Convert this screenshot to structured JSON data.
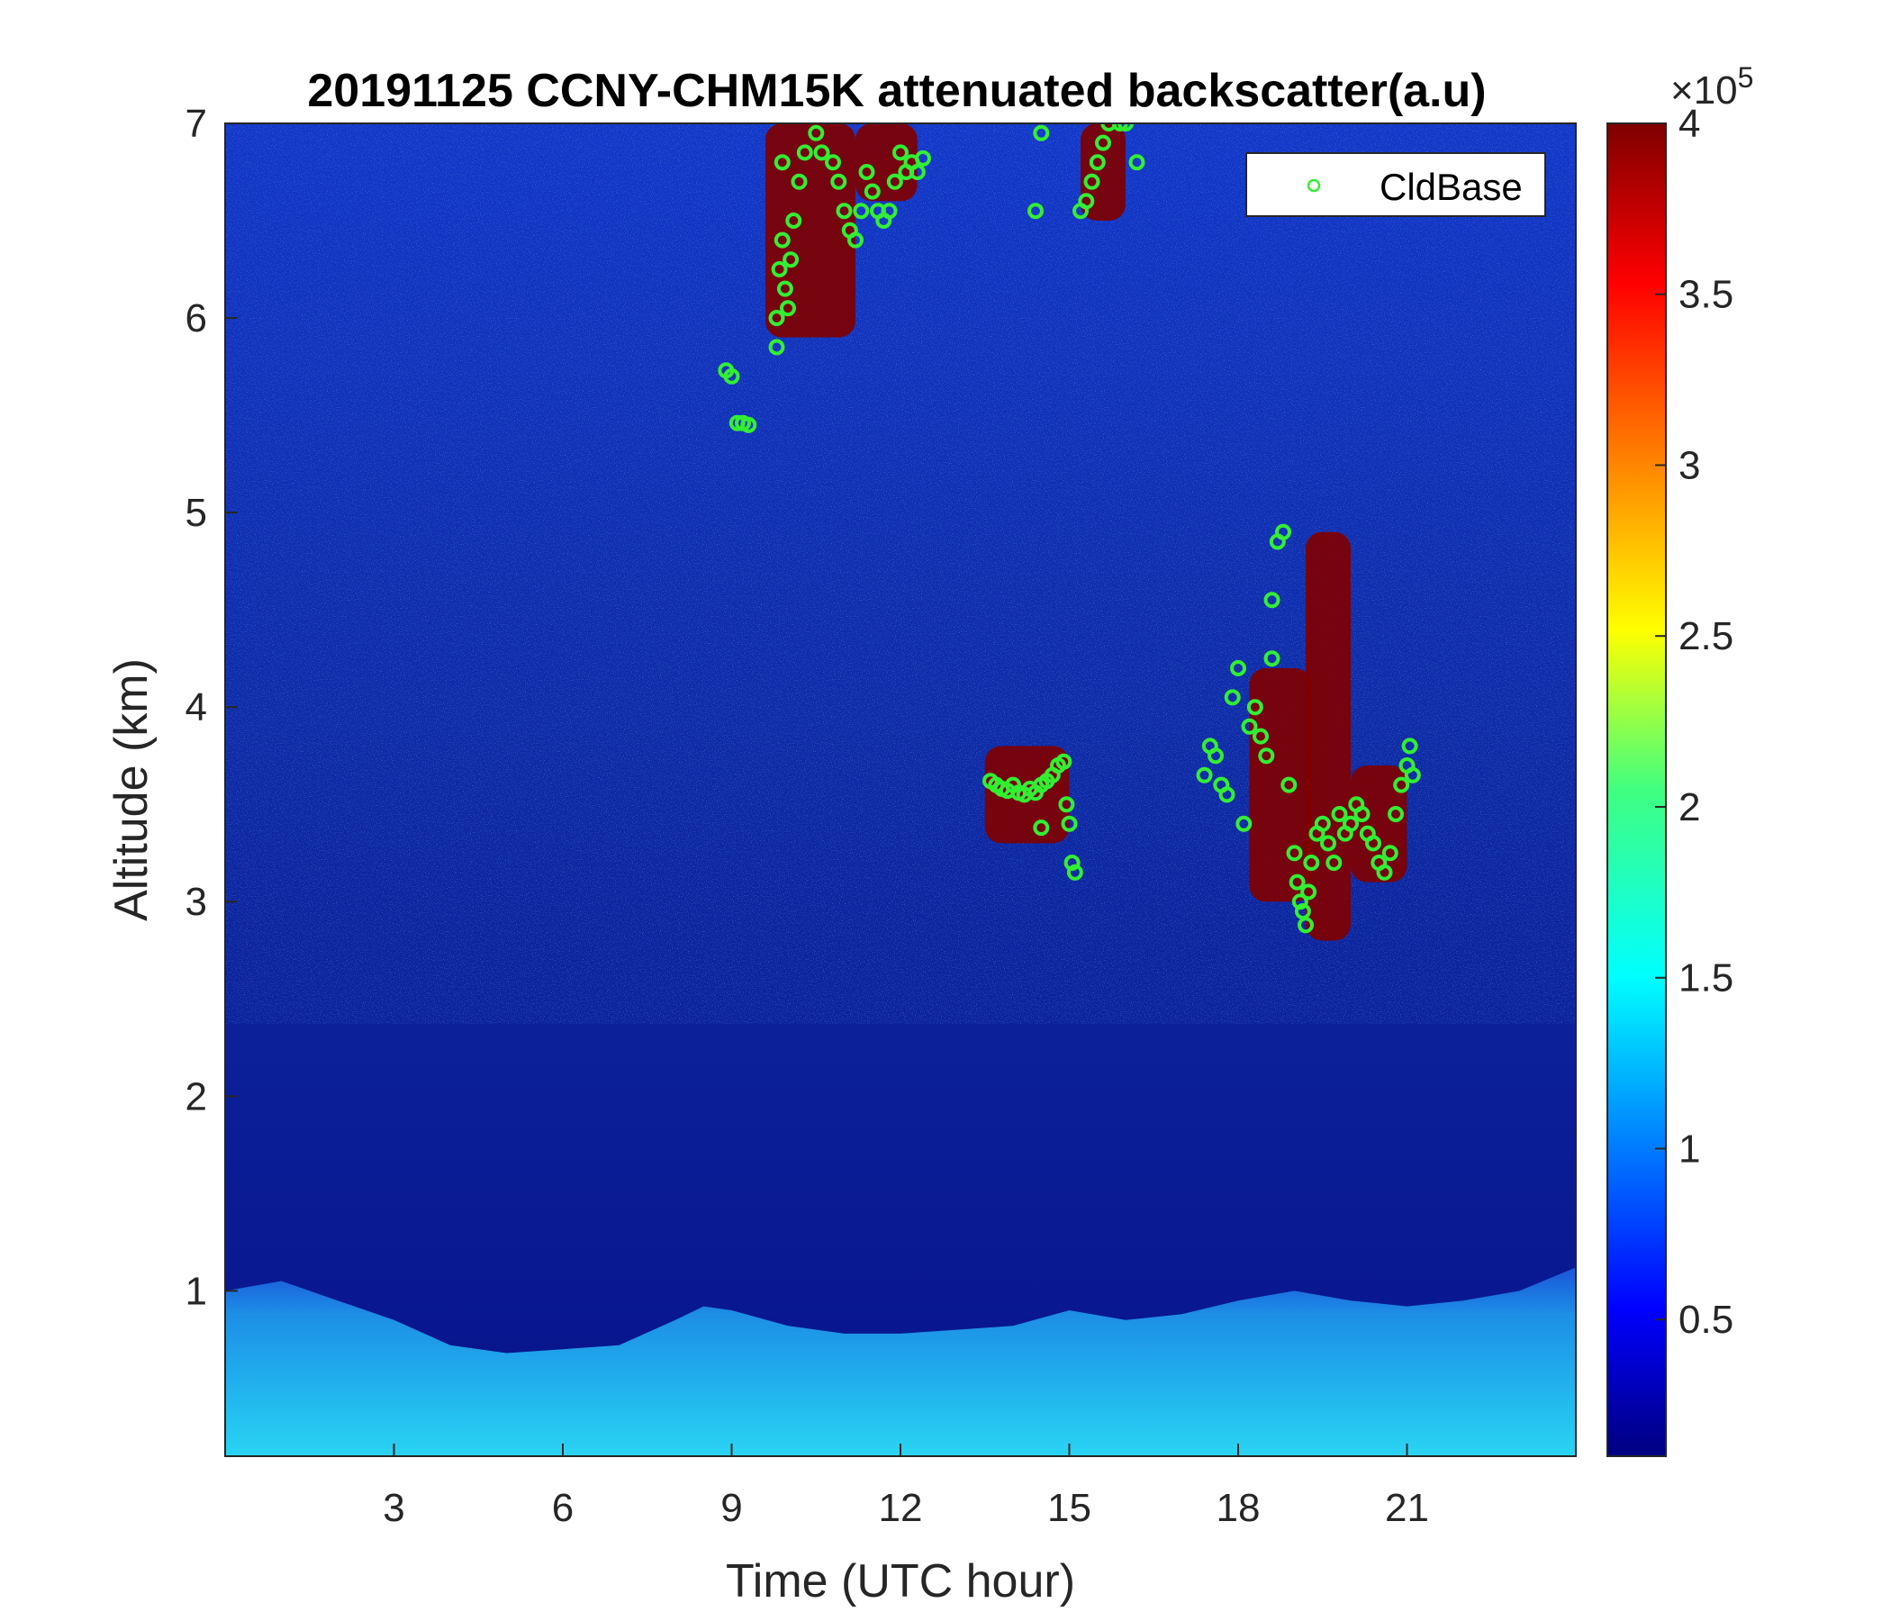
{
  "chart_data": {
    "type": "heatmap",
    "title": "20191125 CCNY-CHM15K attenuated backscatter(a.u)",
    "xlabel": "Time (UTC hour)",
    "ylabel": "Altitude (km)",
    "xlim": [
      0,
      24
    ],
    "ylim": [
      0.15,
      7
    ],
    "xticks": [
      "3",
      "6",
      "9",
      "12",
      "15",
      "18",
      "21"
    ],
    "yticks": [
      "1",
      "2",
      "3",
      "4",
      "5",
      "6",
      "7"
    ],
    "colorbar": {
      "colormap": "jet",
      "range": [
        0.1,
        4
      ],
      "ticks": [
        "0.5",
        "1",
        "1.5",
        "2",
        "2.5",
        "3",
        "3.5",
        "4"
      ],
      "exponent_label": "×10",
      "exponent_power": "5"
    },
    "legend": {
      "position": "top-right",
      "entry": "CldBase",
      "marker_color": "#33ee33"
    },
    "boundary_layer_top_km": [
      [
        0,
        1.0
      ],
      [
        1,
        1.05
      ],
      [
        2,
        0.95
      ],
      [
        3,
        0.85
      ],
      [
        4,
        0.72
      ],
      [
        5,
        0.68
      ],
      [
        6,
        0.7
      ],
      [
        7,
        0.72
      ],
      [
        8,
        0.85
      ],
      [
        8.5,
        0.92
      ],
      [
        9,
        0.9
      ],
      [
        10,
        0.82
      ],
      [
        11,
        0.78
      ],
      [
        12,
        0.78
      ],
      [
        13,
        0.8
      ],
      [
        14,
        0.82
      ],
      [
        15,
        0.9
      ],
      [
        16,
        0.85
      ],
      [
        17,
        0.88
      ],
      [
        18,
        0.95
      ],
      [
        19,
        1.0
      ],
      [
        20,
        0.95
      ],
      [
        21,
        0.92
      ],
      [
        22,
        0.95
      ],
      [
        23,
        1.0
      ],
      [
        24,
        1.12
      ]
    ],
    "cloud_regions": [
      {
        "x0": 9.6,
        "x1": 11.2,
        "y0": 5.9,
        "y1": 7.0
      },
      {
        "x0": 11.2,
        "x1": 12.3,
        "y0": 6.6,
        "y1": 7.0
      },
      {
        "x0": 15.2,
        "x1": 16.0,
        "y0": 6.5,
        "y1": 7.0
      },
      {
        "x0": 13.5,
        "x1": 15.0,
        "y0": 3.3,
        "y1": 3.8
      },
      {
        "x0": 18.2,
        "x1": 19.3,
        "y0": 3.0,
        "y1": 4.2
      },
      {
        "x0": 19.2,
        "x1": 20.0,
        "y0": 2.8,
        "y1": 4.9
      },
      {
        "x0": 20.0,
        "x1": 21.0,
        "y0": 3.1,
        "y1": 3.7
      }
    ],
    "series": [
      {
        "name": "CldBase",
        "points": [
          [
            8.9,
            5.73
          ],
          [
            9.0,
            5.7
          ],
          [
            9.1,
            5.46
          ],
          [
            9.2,
            5.46
          ],
          [
            9.3,
            5.45
          ],
          [
            9.8,
            5.85
          ],
          [
            9.8,
            6.0
          ],
          [
            9.85,
            6.25
          ],
          [
            9.9,
            6.4
          ],
          [
            9.9,
            6.8
          ],
          [
            9.95,
            6.15
          ],
          [
            10.0,
            6.05
          ],
          [
            10.05,
            6.3
          ],
          [
            10.1,
            6.5
          ],
          [
            10.2,
            6.7
          ],
          [
            10.3,
            6.85
          ],
          [
            10.5,
            6.95
          ],
          [
            10.6,
            6.85
          ],
          [
            10.8,
            6.8
          ],
          [
            10.9,
            6.7
          ],
          [
            11.0,
            6.55
          ],
          [
            11.1,
            6.45
          ],
          [
            11.2,
            6.4
          ],
          [
            11.3,
            6.55
          ],
          [
            11.4,
            6.75
          ],
          [
            11.5,
            6.65
          ],
          [
            11.6,
            6.55
          ],
          [
            11.7,
            6.5
          ],
          [
            11.8,
            6.55
          ],
          [
            11.9,
            6.7
          ],
          [
            12.0,
            6.85
          ],
          [
            12.1,
            6.75
          ],
          [
            12.2,
            6.8
          ],
          [
            12.3,
            6.75
          ],
          [
            12.4,
            6.82
          ],
          [
            13.6,
            3.62
          ],
          [
            13.7,
            3.6
          ],
          [
            13.8,
            3.58
          ],
          [
            13.9,
            3.57
          ],
          [
            14.0,
            3.6
          ],
          [
            14.1,
            3.56
          ],
          [
            14.2,
            3.55
          ],
          [
            14.3,
            3.58
          ],
          [
            14.4,
            3.56
          ],
          [
            14.5,
            3.6
          ],
          [
            14.6,
            3.62
          ],
          [
            14.7,
            3.65
          ],
          [
            14.8,
            3.7
          ],
          [
            14.9,
            3.72
          ],
          [
            14.95,
            3.5
          ],
          [
            15.0,
            3.4
          ],
          [
            15.05,
            3.2
          ],
          [
            15.1,
            3.15
          ],
          [
            14.5,
            3.38
          ],
          [
            14.4,
            6.55
          ],
          [
            14.5,
            6.95
          ],
          [
            15.2,
            6.55
          ],
          [
            15.3,
            6.6
          ],
          [
            15.4,
            6.7
          ],
          [
            15.5,
            6.8
          ],
          [
            15.6,
            6.9
          ],
          [
            15.7,
            7.0
          ],
          [
            15.9,
            7.0
          ],
          [
            16.0,
            7.0
          ],
          [
            16.2,
            6.8
          ],
          [
            17.4,
            3.65
          ],
          [
            17.5,
            3.8
          ],
          [
            17.6,
            3.75
          ],
          [
            17.7,
            3.6
          ],
          [
            17.8,
            3.55
          ],
          [
            17.9,
            4.05
          ],
          [
            18.0,
            4.2
          ],
          [
            18.1,
            3.4
          ],
          [
            18.2,
            3.9
          ],
          [
            18.3,
            4.0
          ],
          [
            18.4,
            3.85
          ],
          [
            18.5,
            3.75
          ],
          [
            18.6,
            4.25
          ],
          [
            18.6,
            4.55
          ],
          [
            18.7,
            4.85
          ],
          [
            18.8,
            4.9
          ],
          [
            18.9,
            3.6
          ],
          [
            19.0,
            3.25
          ],
          [
            19.05,
            3.1
          ],
          [
            19.1,
            3.0
          ],
          [
            19.15,
            2.95
          ],
          [
            19.2,
            2.88
          ],
          [
            19.25,
            3.05
          ],
          [
            19.3,
            3.2
          ],
          [
            19.4,
            3.35
          ],
          [
            19.5,
            3.4
          ],
          [
            19.6,
            3.3
          ],
          [
            19.7,
            3.2
          ],
          [
            19.8,
            3.45
          ],
          [
            19.9,
            3.35
          ],
          [
            20.0,
            3.4
          ],
          [
            20.1,
            3.5
          ],
          [
            20.2,
            3.45
          ],
          [
            20.3,
            3.35
          ],
          [
            20.4,
            3.3
          ],
          [
            20.5,
            3.2
          ],
          [
            20.6,
            3.15
          ],
          [
            20.7,
            3.25
          ],
          [
            20.8,
            3.45
          ],
          [
            20.9,
            3.6
          ],
          [
            21.0,
            3.7
          ],
          [
            21.05,
            3.8
          ],
          [
            21.1,
            3.65
          ]
        ]
      }
    ]
  }
}
